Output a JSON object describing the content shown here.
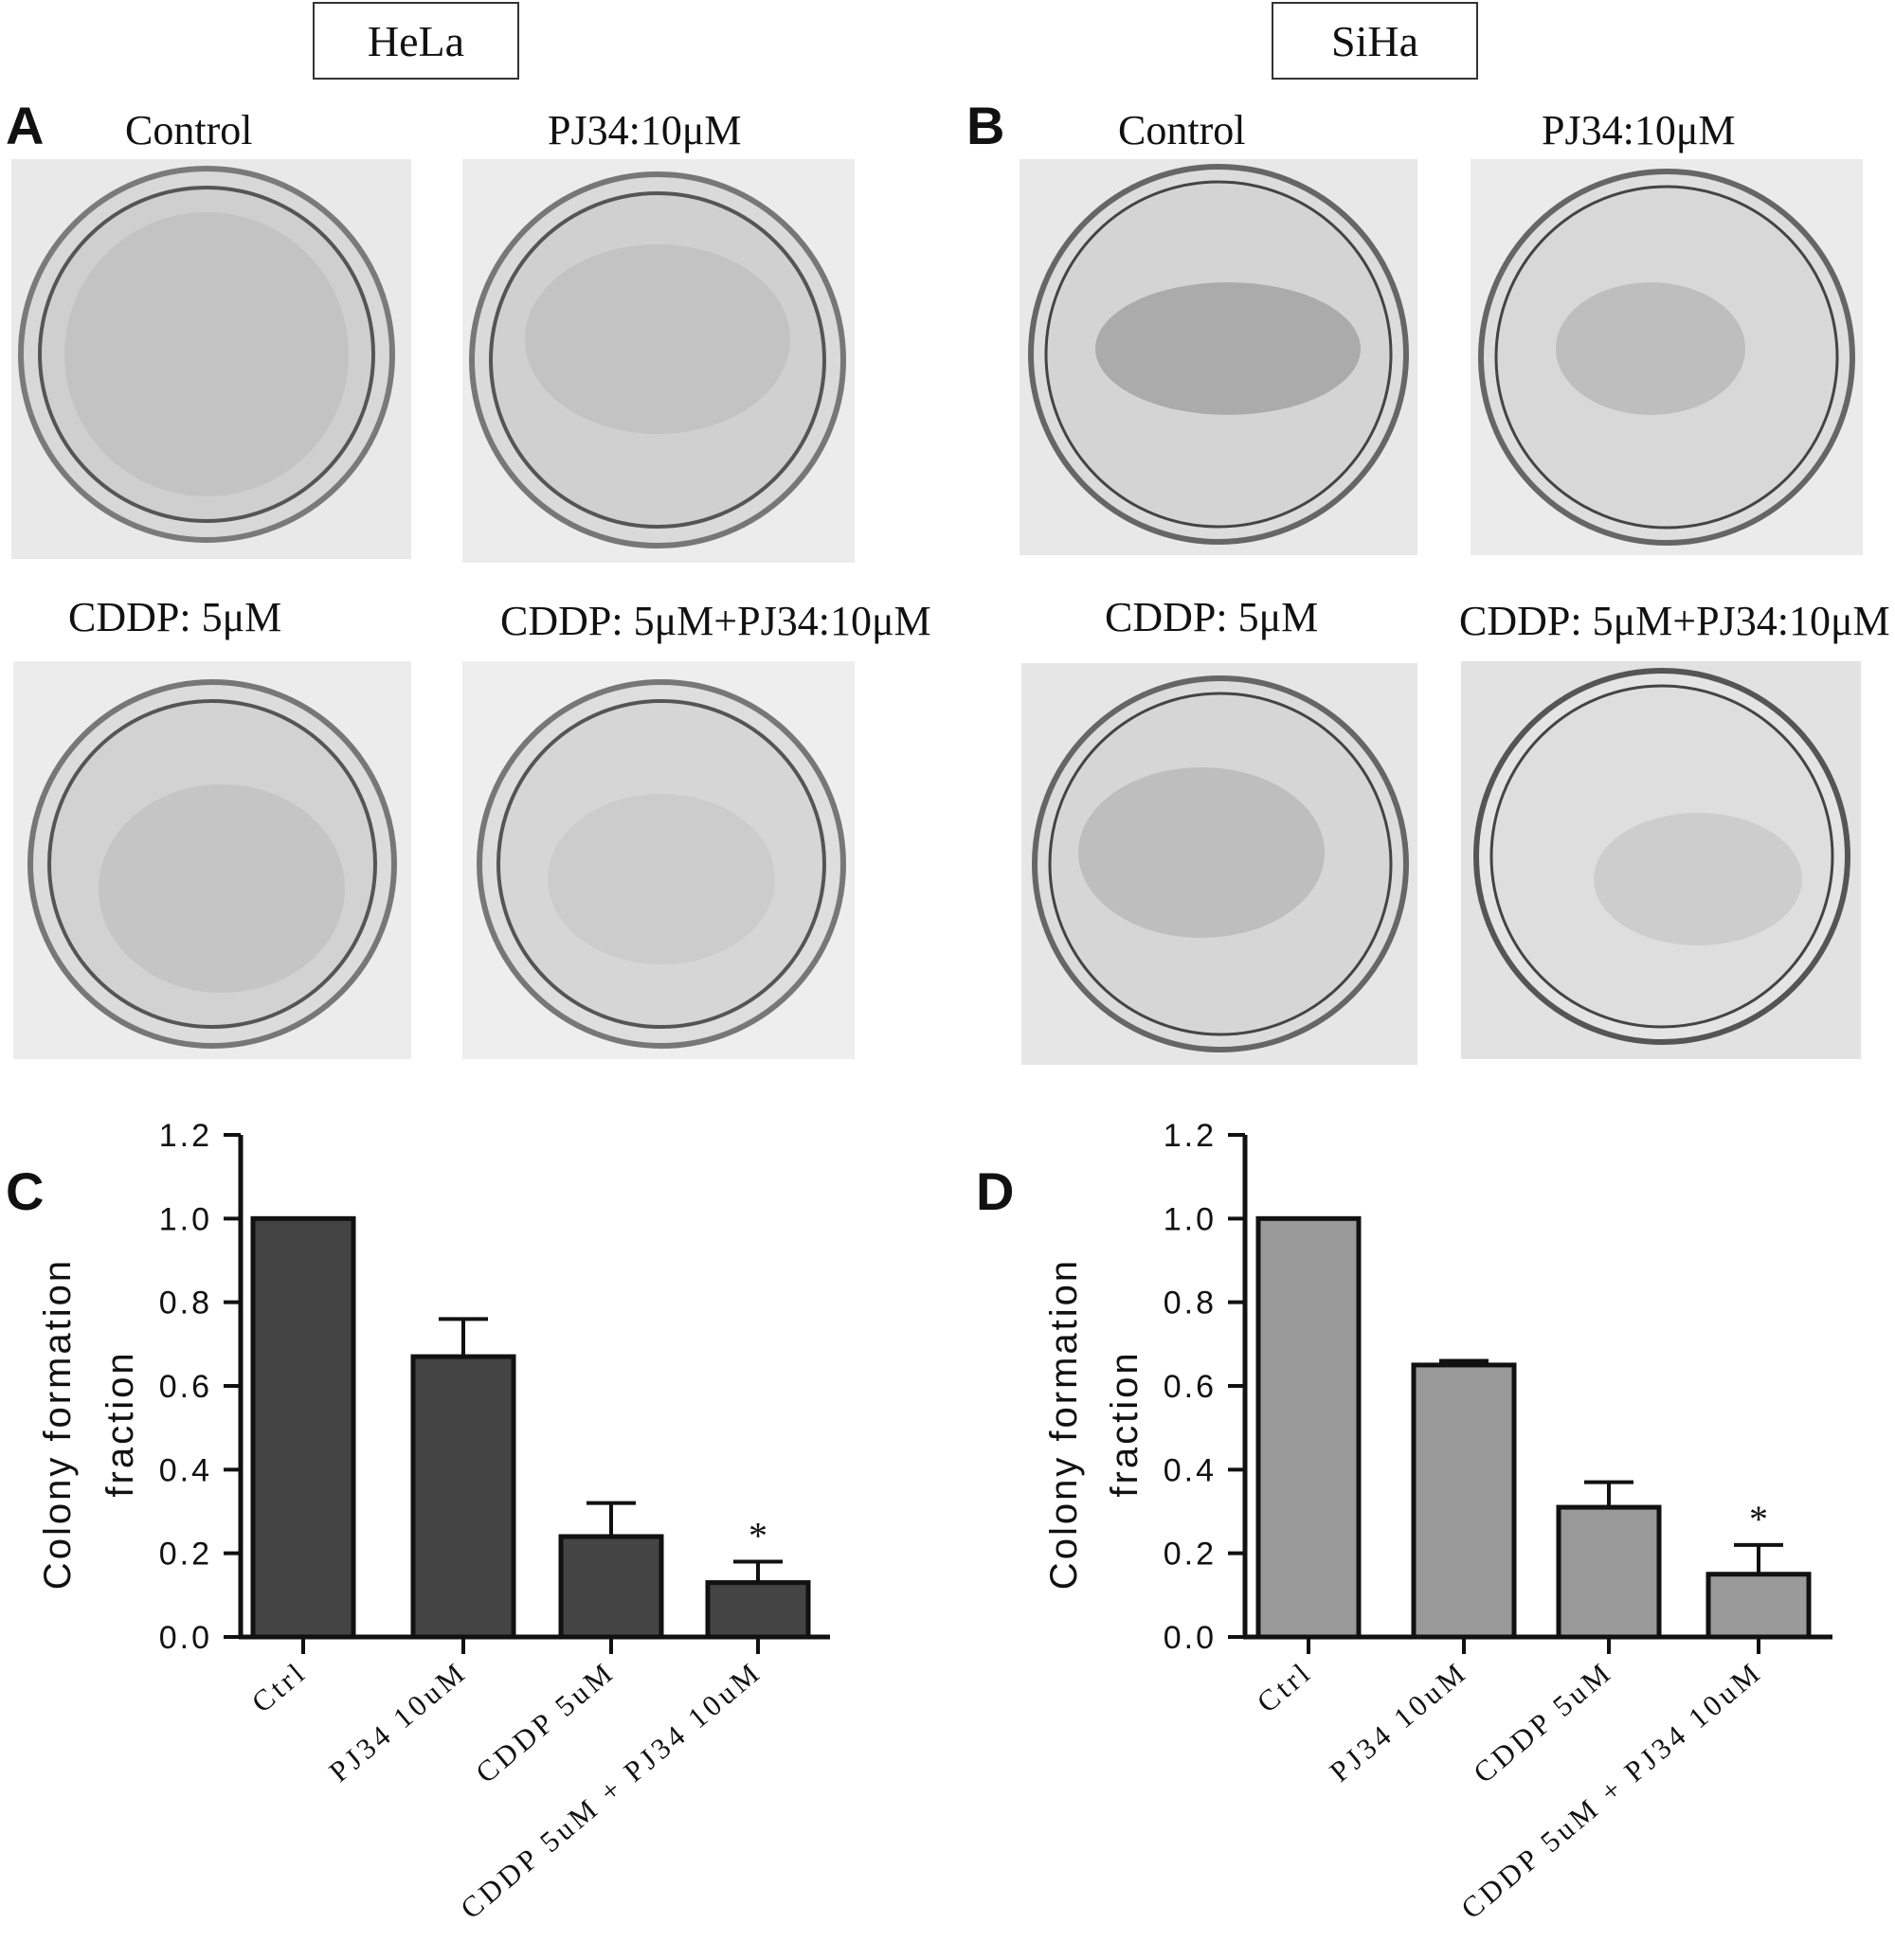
{
  "cell_lines": {
    "left": "HeLa",
    "right": "SiHa"
  },
  "panels": {
    "a": "A",
    "b": "B",
    "c": "C",
    "d": "D"
  },
  "photo_labels": {
    "hela": [
      "Control",
      "PJ34:10μM",
      "CDDP: 5μM",
      "CDDP: 5μM+PJ34:10μM"
    ],
    "siha": [
      "Control",
      "PJ34:10μM",
      "CDDP: 5μM",
      "CDDP: 5μM+PJ34:10μM"
    ]
  },
  "photo_icons": {
    "hela": [
      "petri-dish-icon",
      "petri-dish-icon",
      "petri-dish-icon",
      "petri-dish-icon"
    ],
    "siha": [
      "petri-dish-icon",
      "petri-dish-icon",
      "petri-dish-icon",
      "petri-dish-icon"
    ]
  },
  "colors": {
    "hela_bar": "#444444",
    "siha_bar": "#999999",
    "axis": "#111111"
  },
  "chart_data": [
    {
      "id": "C",
      "type": "bar",
      "categories": [
        "Ctrl",
        "PJ34 10uM",
        "CDDP 5uM",
        "CDDP 5uM + PJ34 10uM"
      ],
      "values": [
        1.0,
        0.67,
        0.24,
        0.13
      ],
      "errors": [
        0,
        0.09,
        0.08,
        0.05
      ],
      "annotations": [
        "",
        "",
        "",
        "*"
      ],
      "ylabel": [
        "Colony formation",
        "fraction"
      ],
      "yticks": [
        "0.0",
        "0.2",
        "0.4",
        "0.6",
        "0.8",
        "1.0",
        "1.2"
      ],
      "ylim": [
        0,
        1.2
      ],
      "color": "#444444"
    },
    {
      "id": "D",
      "type": "bar",
      "categories": [
        "Ctrl",
        "PJ34 10uM",
        "CDDP 5uM",
        "CDDP 5uM + PJ34 10uM"
      ],
      "values": [
        1.0,
        0.65,
        0.31,
        0.15
      ],
      "errors": [
        0,
        0.01,
        0.06,
        0.07
      ],
      "annotations": [
        "",
        "",
        "",
        "*"
      ],
      "ylabel": [
        "Colony formation",
        "fraction"
      ],
      "yticks": [
        "0.0",
        "0.2",
        "0.4",
        "0.6",
        "0.8",
        "1.0",
        "1.2"
      ],
      "ylim": [
        0,
        1.2
      ],
      "color": "#999999"
    }
  ]
}
